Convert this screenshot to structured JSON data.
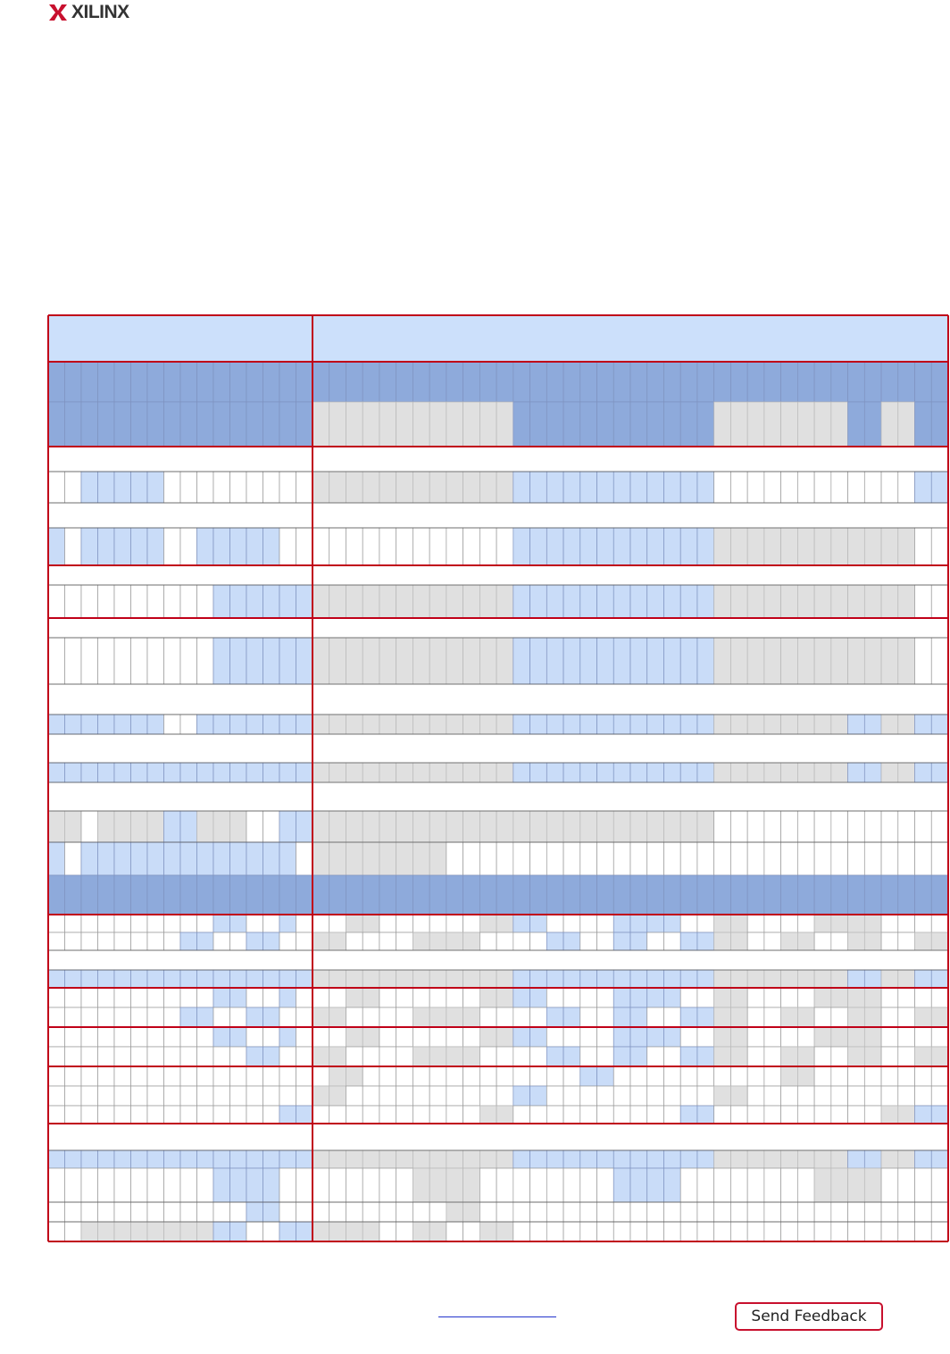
{
  "header": {
    "logo": "XILINX"
  },
  "footer": {
    "feedback": "Send Feedback"
  }
}
